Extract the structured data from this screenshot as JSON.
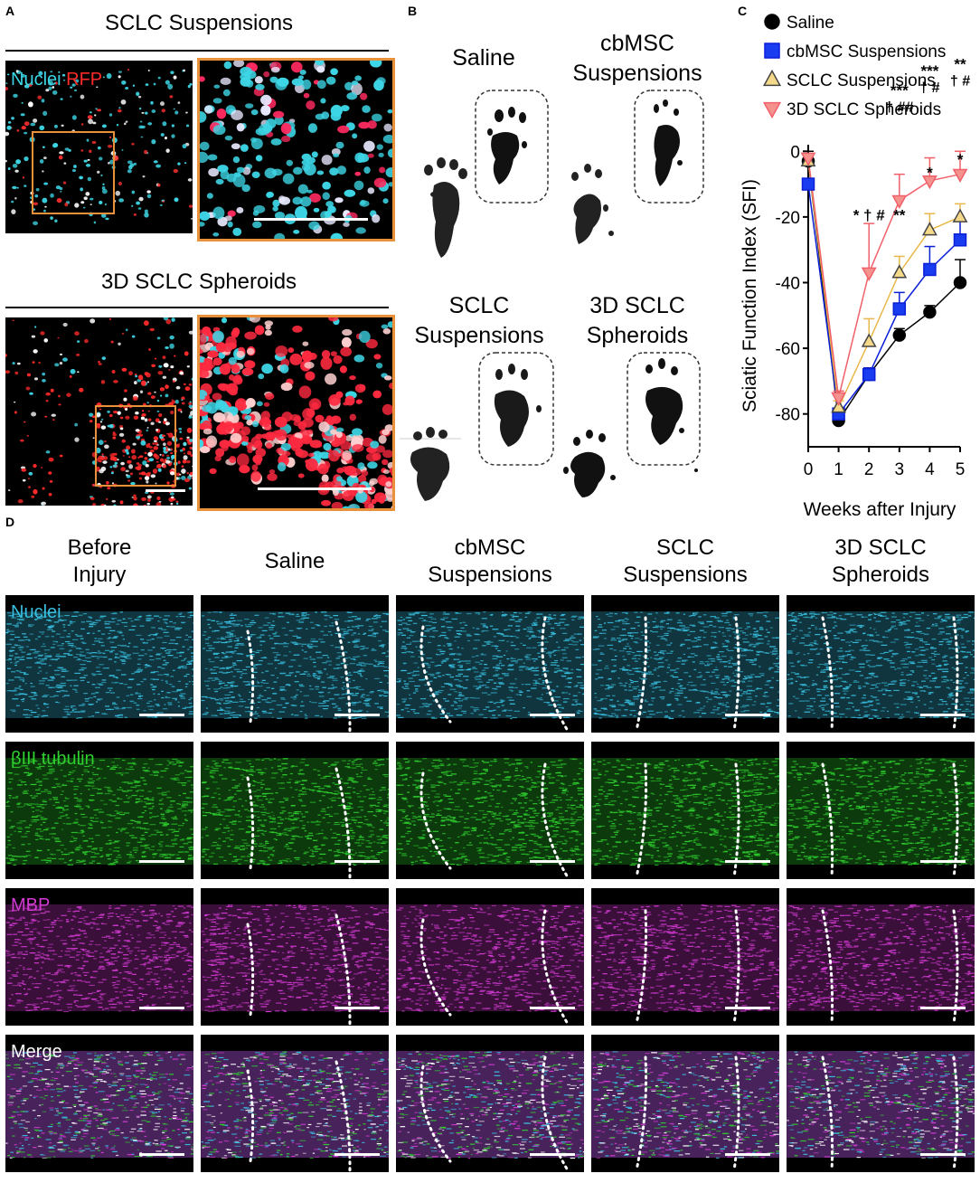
{
  "panel_a": {
    "label": "A",
    "top_title": "SCLC Suspensions",
    "bottom_title": "3D SCLC Spheroids",
    "stain_nuclei": "Nuclei",
    "stain_rfp": "RFP",
    "colors": {
      "nuclei": "#3dd6e6",
      "rfp": "#ff2a2a",
      "inset_border": "#e8913a"
    }
  },
  "panel_b": {
    "label": "B",
    "groups": [
      {
        "line1": "Saline",
        "line2": ""
      },
      {
        "line1": "cbMSC",
        "line2": "Suspensions"
      },
      {
        "line1": "SCLC",
        "line2": "Suspensions"
      },
      {
        "line1": "3D SCLC",
        "line2": "Spheroids"
      }
    ]
  },
  "panel_c": {
    "label": "C",
    "chart_data": {
      "type": "line",
      "xlabel": "Weeks after Injury",
      "ylabel": "Sciatic Function Index (SFI)",
      "x": [
        0,
        1,
        2,
        3,
        4,
        5
      ],
      "xticks": [
        "0",
        "1",
        "2",
        "3",
        "4",
        "5"
      ],
      "yticks": [
        "0",
        "-20",
        "-40",
        "-60",
        "-80"
      ],
      "ylim": [
        -90,
        2
      ],
      "legend_position": "top-right",
      "series": [
        {
          "name": "Saline",
          "marker": "circle",
          "color": "#000000",
          "fill": "#000000",
          "values": [
            -3,
            -82,
            -68,
            -56,
            -49,
            -40
          ],
          "err": [
            3,
            1,
            2,
            2,
            2,
            7
          ]
        },
        {
          "name": "cbMSC Suspensions",
          "marker": "square",
          "color": "#0a1fd6",
          "fill": "#1a3cf0",
          "values": [
            -10,
            -80,
            -68,
            -48,
            -36,
            -27
          ],
          "err": [
            0,
            1,
            2,
            5,
            7,
            6
          ]
        },
        {
          "name": "SCLC Suspensions",
          "marker": "triangle-up",
          "color": "#e8b84a",
          "fill": "#f5d98a",
          "values": [
            -3,
            -78,
            -58,
            -37,
            -24,
            -20
          ],
          "err": [
            0,
            2,
            7,
            5,
            5,
            4
          ]
        },
        {
          "name": "3D SCLC Spheroids",
          "marker": "triangle-down",
          "color": "#f0606a",
          "fill": "#f5928e",
          "values": [
            -2,
            -75,
            -37,
            -15,
            -9,
            -7
          ],
          "err": [
            1,
            2,
            15,
            8,
            7,
            7
          ]
        }
      ],
      "annotations": [
        {
          "x": 2,
          "y": -37,
          "line1": "* † #",
          "line2": ""
        },
        {
          "x": 3,
          "y": -15,
          "line1": "***",
          "line2": "† ##"
        },
        {
          "x": 4,
          "y": -9,
          "line1": "***",
          "line2": "† #"
        },
        {
          "x": 5,
          "y": -7,
          "line1": "**",
          "line2": "† #"
        },
        {
          "x": 3,
          "y": -37,
          "line1": "**",
          "line2": ""
        },
        {
          "x": 4,
          "y": -24,
          "line1": "*",
          "line2": ""
        },
        {
          "x": 5,
          "y": -20,
          "line1": "*",
          "line2": ""
        }
      ]
    }
  },
  "panel_d": {
    "label": "D",
    "columns": [
      {
        "line1": "Before",
        "line2": "Injury"
      },
      {
        "line1": "Saline",
        "line2": ""
      },
      {
        "line1": "cbMSC",
        "line2": "Suspensions"
      },
      {
        "line1": "SCLC",
        "line2": "Suspensions"
      },
      {
        "line1": "3D SCLC",
        "line2": "Spheroids"
      }
    ],
    "rows": [
      {
        "label": "Nuclei",
        "color": "#38bfe0"
      },
      {
        "label": "βIII tubulin",
        "color": "#2ecf2e"
      },
      {
        "label": "MBP",
        "color": "#d23ad2"
      },
      {
        "label": "Merge",
        "color": "#ffffff"
      }
    ]
  }
}
